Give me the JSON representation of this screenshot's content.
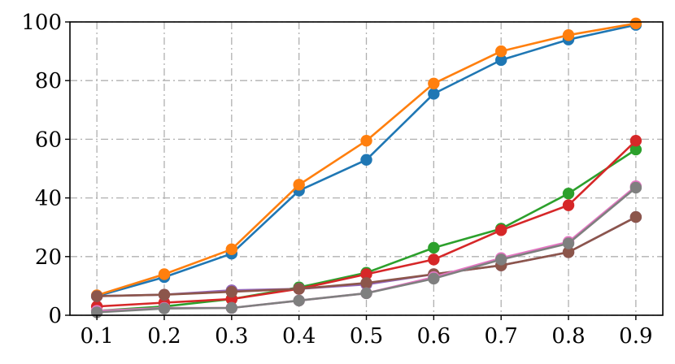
{
  "chart_data": {
    "type": "line",
    "title": "",
    "xlabel": "",
    "ylabel": "",
    "x": [
      0.1,
      0.2,
      0.3,
      0.4,
      0.5,
      0.6,
      0.7,
      0.8,
      0.9
    ],
    "x_tick_labels": [
      "0.1",
      "0.2",
      "0.3",
      "0.4",
      "0.5",
      "0.6",
      "0.7",
      "0.8",
      "0.9"
    ],
    "xlim": [
      0.06,
      0.94
    ],
    "y_ticks": [
      0,
      20,
      40,
      60,
      80,
      100
    ],
    "y_tick_labels": [
      "0",
      "20",
      "40",
      "60",
      "80",
      "100"
    ],
    "ylim": [
      0,
      100
    ],
    "grid": true,
    "legend": false,
    "series": [
      {
        "color": "#1f77b4",
        "values": [
          6.5,
          13,
          21,
          42.5,
          53,
          75.5,
          87,
          94,
          99
        ]
      },
      {
        "color": "#ff7f0e",
        "values": [
          6.8,
          14,
          22.5,
          44.5,
          59.5,
          79,
          90,
          95.5,
          99.5
        ]
      },
      {
        "color": "#2ca02c",
        "values": [
          1.5,
          3,
          5.5,
          9.5,
          14.5,
          23,
          29.5,
          41.5,
          56.5
        ]
      },
      {
        "color": "#d62728",
        "values": [
          3,
          4.3,
          5.5,
          9,
          14,
          19,
          29,
          37.5,
          59.5
        ]
      },
      {
        "color": "#9467bd",
        "values": [
          6.5,
          7,
          8.5,
          9,
          10.5,
          14,
          17,
          21.5,
          33.5
        ]
      },
      {
        "color": "#8c564b",
        "values": [
          6.5,
          7,
          8,
          9,
          11,
          14,
          17,
          21.5,
          33.5
        ]
      },
      {
        "color": "#e377c2",
        "values": [
          1.5,
          2.5,
          2.5,
          5,
          7.5,
          13,
          19.5,
          25,
          44
        ]
      },
      {
        "color": "#7f7f7f",
        "values": [
          1,
          2.3,
          2.5,
          5,
          7.5,
          12.5,
          19,
          24.5,
          43.5
        ]
      }
    ]
  }
}
